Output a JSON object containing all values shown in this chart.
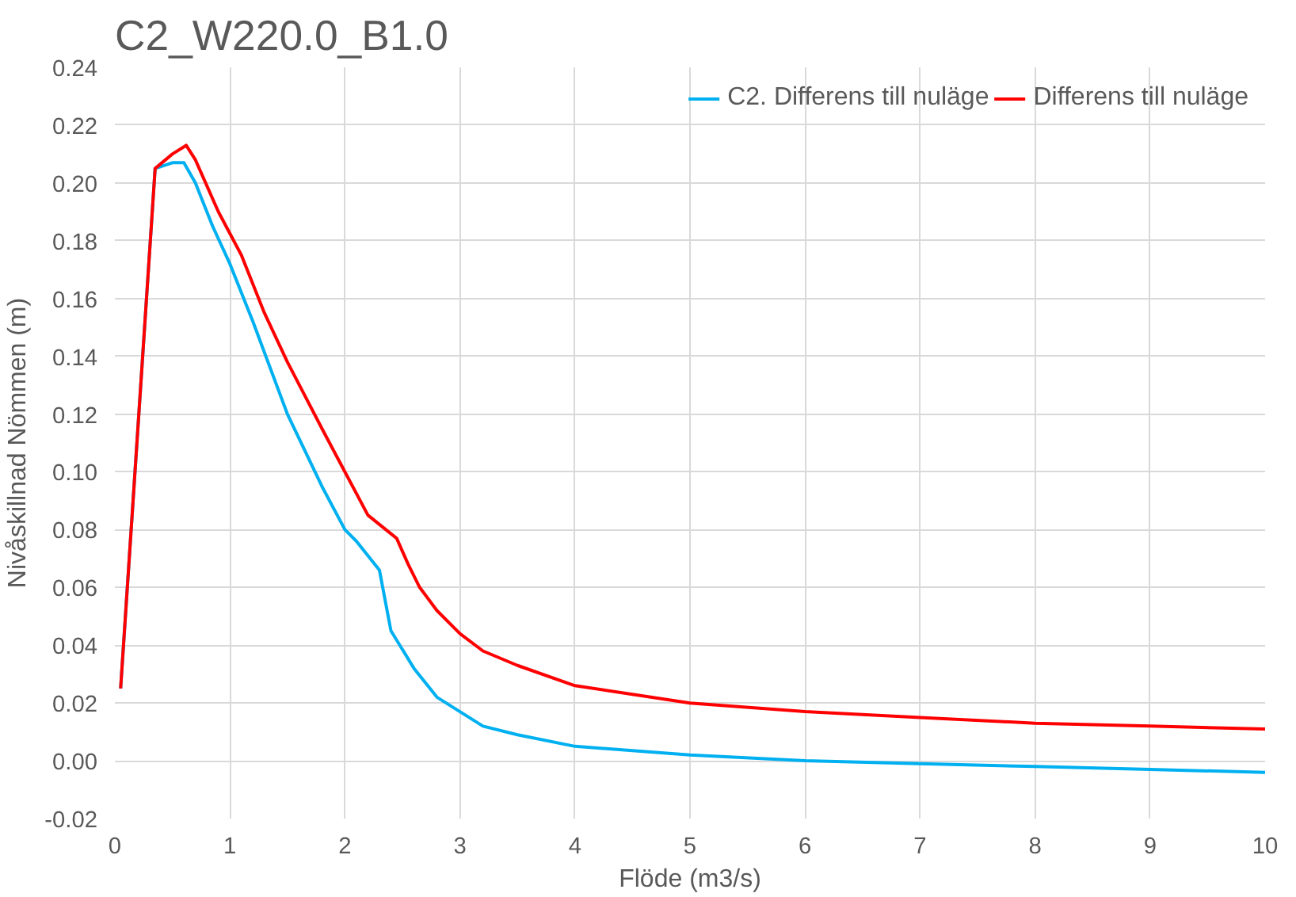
{
  "chart_data": {
    "type": "line",
    "title": "C2_W220.0_B1.0",
    "xlabel": "Flöde (m3/s)",
    "ylabel": "Nivåskillnad Nömmen (m)",
    "xlim": [
      0,
      10
    ],
    "xticks": [
      0,
      1,
      2,
      3,
      4,
      5,
      6,
      7,
      8,
      9,
      10
    ],
    "ylim": [
      -0.02,
      0.24
    ],
    "yticks": [
      {
        "value": -0.02,
        "label": "-0.02"
      },
      {
        "value": 0,
        "label": "0.00"
      },
      {
        "value": 0.02,
        "label": "0.02"
      },
      {
        "value": 0.04,
        "label": "0.04"
      },
      {
        "value": 0.06,
        "label": "0.06"
      },
      {
        "value": 0.08,
        "label": "0.08"
      },
      {
        "value": 0.1,
        "label": "0.10"
      },
      {
        "value": 0.12,
        "label": "0.12"
      },
      {
        "value": 0.14,
        "label": "0.14"
      },
      {
        "value": 0.16,
        "label": "0.16"
      },
      {
        "value": 0.18,
        "label": "0.18"
      },
      {
        "value": 0.2,
        "label": "0.20"
      },
      {
        "value": 0.22,
        "label": "0.22"
      },
      {
        "value": 0.24,
        "label": "0.24"
      }
    ],
    "grid": true,
    "legend": "top right",
    "marker": "none",
    "line_style": "solid",
    "series": [
      {
        "name": "C2. Differens till nuläge",
        "color": "#00b0f0",
        "x": [
          0.05,
          0.35,
          0.5,
          0.6,
          0.7,
          0.85,
          1.0,
          1.2,
          1.5,
          1.8,
          2.0,
          2.1,
          2.3,
          2.4,
          2.6,
          2.8,
          3.0,
          3.2,
          3.5,
          4.0,
          5,
          6,
          7,
          8,
          9,
          10
        ],
        "values": [
          0.025,
          0.205,
          0.207,
          0.207,
          0.2,
          0.185,
          0.172,
          0.152,
          0.12,
          0.095,
          0.08,
          0.076,
          0.066,
          0.045,
          0.032,
          0.022,
          0.017,
          0.012,
          0.009,
          0.005,
          0.002,
          0.0,
          -0.001,
          -0.002,
          -0.003,
          -0.004
        ]
      },
      {
        "name": "Differens till nuläge",
        "color": "#ff0000",
        "x": [
          0.05,
          0.35,
          0.5,
          0.62,
          0.7,
          0.9,
          1.1,
          1.3,
          1.5,
          1.8,
          2.0,
          2.2,
          2.45,
          2.55,
          2.65,
          2.8,
          3.0,
          3.2,
          3.5,
          4.0,
          4.5,
          5,
          6,
          7,
          8,
          9,
          10
        ],
        "values": [
          0.025,
          0.205,
          0.21,
          0.213,
          0.208,
          0.19,
          0.175,
          0.155,
          0.138,
          0.115,
          0.1,
          0.085,
          0.077,
          0.068,
          0.06,
          0.052,
          0.044,
          0.038,
          0.033,
          0.026,
          0.023,
          0.02,
          0.017,
          0.015,
          0.013,
          0.012,
          0.011
        ]
      }
    ]
  }
}
